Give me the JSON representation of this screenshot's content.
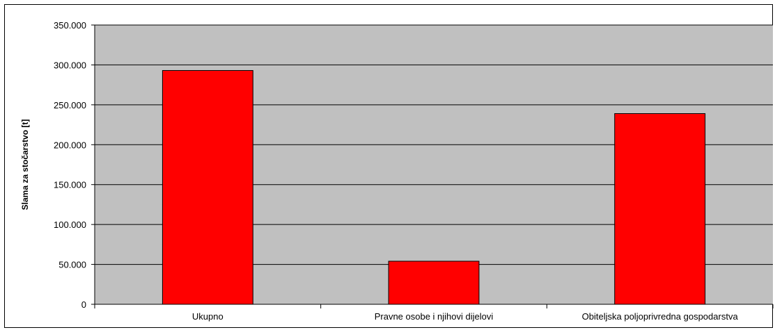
{
  "chart_data": {
    "type": "bar",
    "categories": [
      "Ukupno",
      "Pravne osobe i njihovi dijelovi",
      "Obiteljska poljoprivredna gospodarstva"
    ],
    "values": [
      293000,
      54000,
      239000
    ],
    "title": "",
    "xlabel": "",
    "ylabel": "Slama za stočarstvo [t]",
    "ylim": [
      0,
      350000
    ],
    "yticks": [
      "0",
      "50.000",
      "100.000",
      "150.000",
      "200.000",
      "250.000",
      "300.000",
      "350.000"
    ],
    "grid": true,
    "legend": "none",
    "colors": {
      "plot_background": "#c0c0c0",
      "bar_fill": "#ff0000",
      "bar_stroke": "#000000",
      "gridline": "#000000"
    }
  }
}
